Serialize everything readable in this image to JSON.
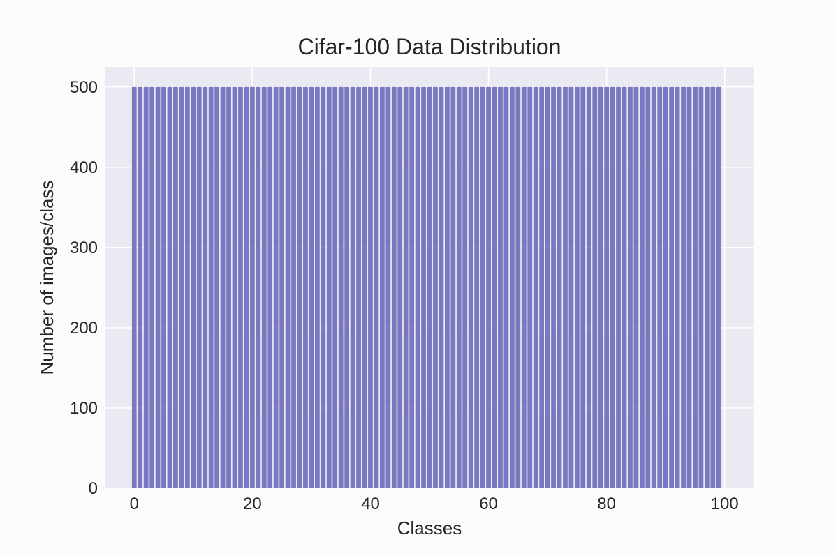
{
  "chart_data": {
    "type": "bar",
    "title": "Cifar-100 Data Distribution",
    "xlabel": "Classes",
    "ylabel": "Number of images/class",
    "x_start": 0,
    "x_count": 100,
    "values_constant": 500,
    "xlim": [
      -5,
      105
    ],
    "ylim": [
      0,
      525
    ],
    "xticks": [
      0,
      20,
      40,
      60,
      80,
      100
    ],
    "yticks": [
      0,
      100,
      200,
      300,
      400,
      500
    ],
    "grid": true,
    "bar_color": "#7b78c2",
    "plot_background": "#eaeaf2",
    "figure_background": "#fcfcfc"
  }
}
